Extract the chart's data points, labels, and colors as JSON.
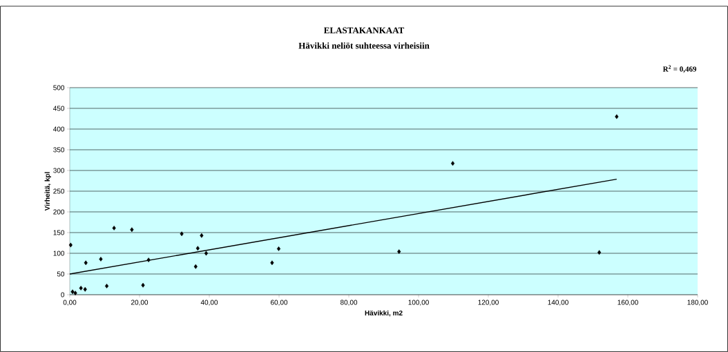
{
  "chart_data": {
    "type": "scatter",
    "title": "ELASTAKANKAAT",
    "subtitle": "Hävikki neliöt suhteessa virheisiin",
    "xlabel": "Hävikki, m2",
    "ylabel": "Virheitä, kpl",
    "annotations": [
      "R$^{2}$ = 0,469"
    ],
    "series": [
      {
        "color": "#000000",
        "marker": "diamond",
        "x": [
          0.26,
          0.8,
          1.6,
          3.2,
          4.4,
          4.6,
          8.9,
          10.6,
          12.7,
          17.8,
          21.0,
          22.6,
          32.1,
          36.1,
          36.7,
          37.8,
          39.1,
          58.0,
          59.9,
          94.4,
          109.8,
          151.8,
          156.8
        ],
        "values": [
          120,
          7,
          4,
          16,
          13,
          77,
          86,
          21,
          161,
          157,
          23,
          84,
          147,
          68,
          112,
          143,
          100,
          77,
          111,
          104,
          317,
          102,
          430
        ]
      },
      {
        "type": "line",
        "color": "#000000",
        "x": [
          0,
          156.8
        ],
        "values": [
          50,
          279
        ]
      }
    ],
    "xlim": [
      0,
      180
    ],
    "ylim": [
      0,
      500
    ],
    "xticks": [
      {
        "value": 0,
        "label": "0,00"
      },
      {
        "value": 20,
        "label": "20,00"
      },
      {
        "value": 40,
        "label": "40,00"
      },
      {
        "value": 60,
        "label": "60,00"
      },
      {
        "value": 80,
        "label": "80,00"
      },
      {
        "value": 100,
        "label": "100,00"
      },
      {
        "value": 120,
        "label": "120,00"
      },
      {
        "value": 140,
        "label": "140,00"
      },
      {
        "value": 160,
        "label": "160,00"
      },
      {
        "value": 180,
        "label": "180,00"
      }
    ],
    "yticks": [
      0,
      50,
      100,
      150,
      200,
      250,
      300,
      350,
      400,
      450,
      500
    ],
    "grid": "y"
  }
}
